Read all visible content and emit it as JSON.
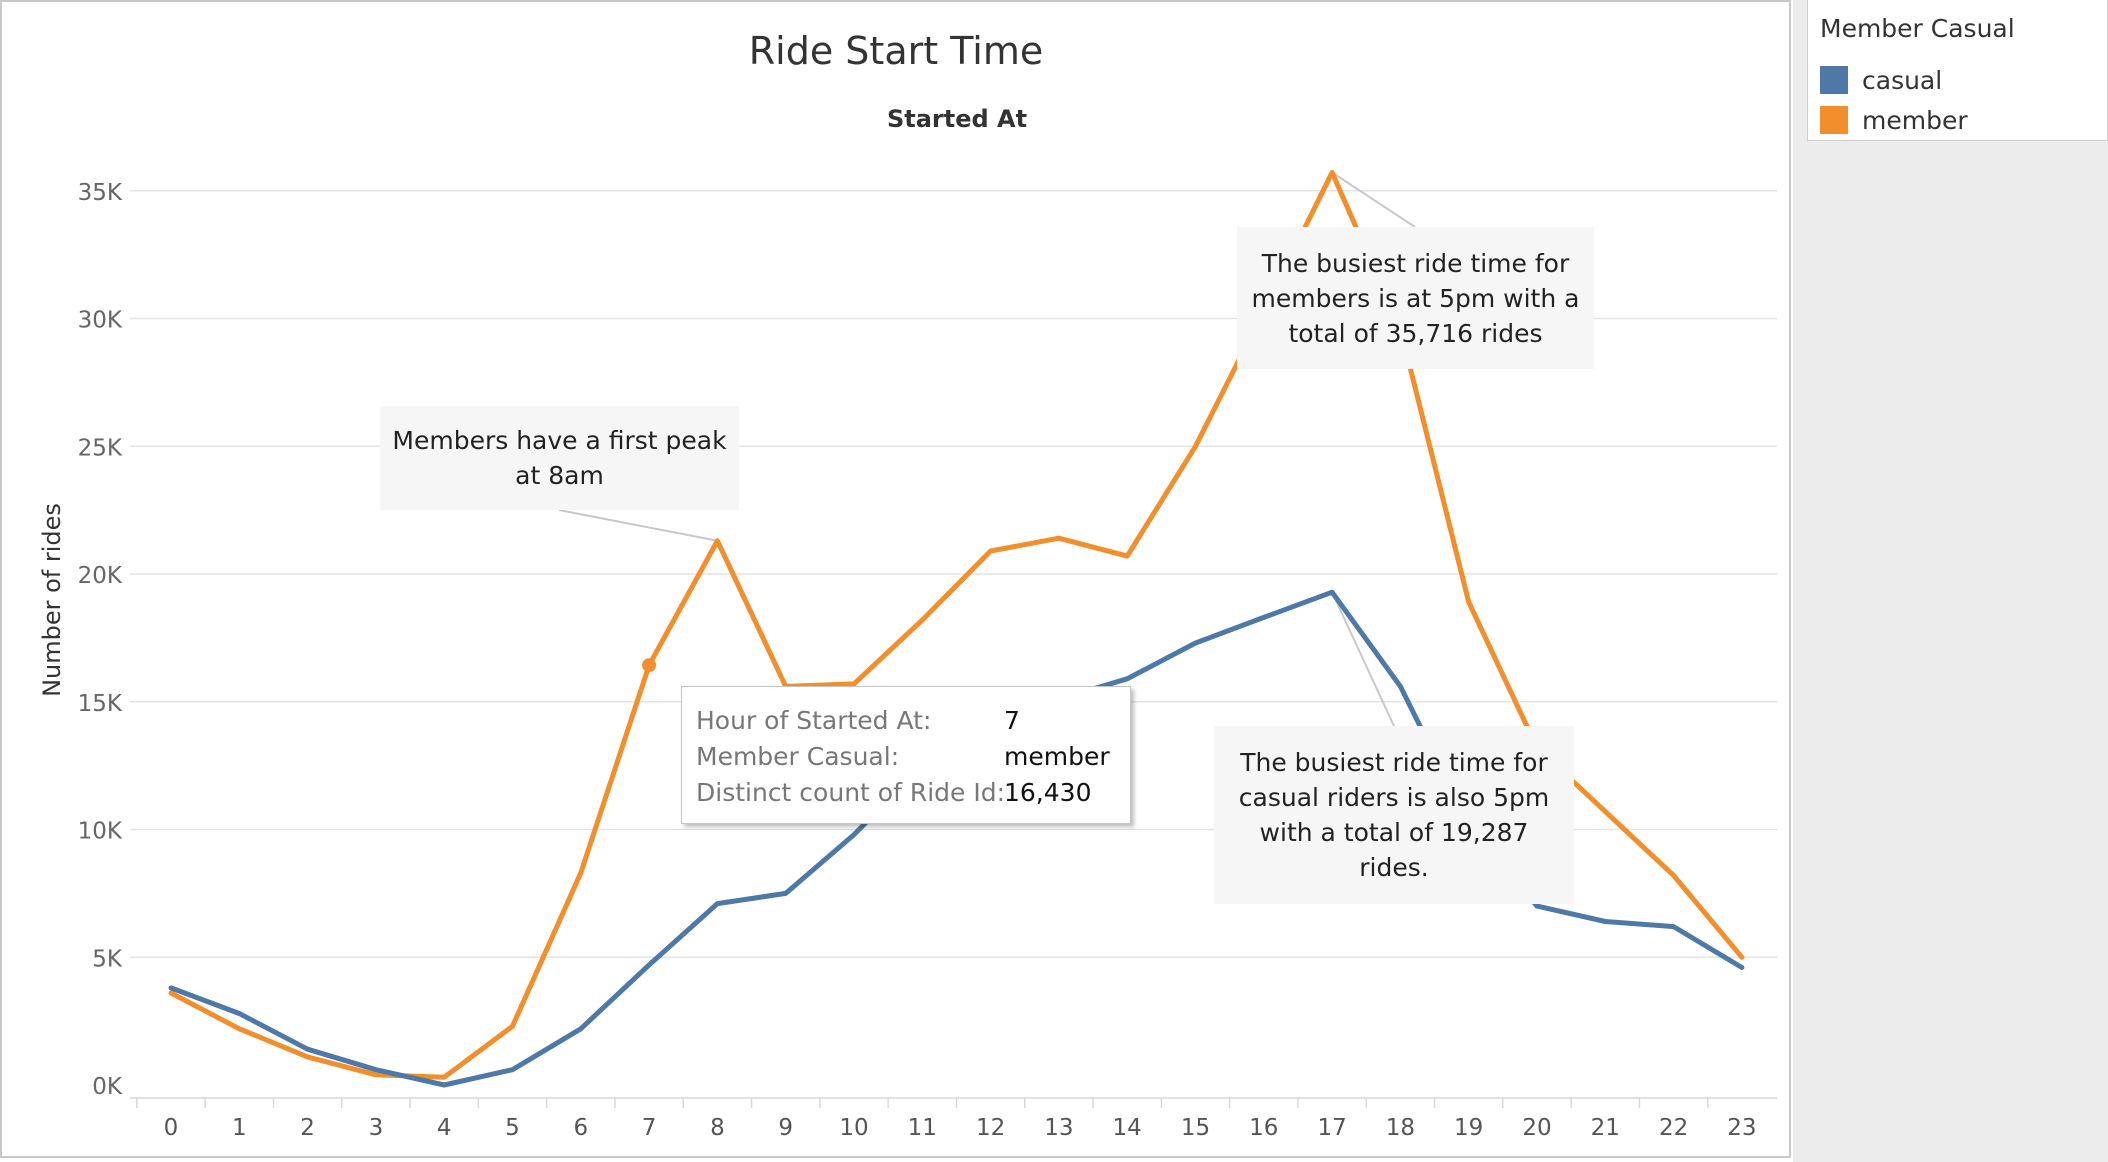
{
  "chart_data": {
    "type": "line",
    "title": "Ride Start Time",
    "subtitle": "Started At",
    "xlabel": "",
    "ylabel": "Number of rides",
    "categories": [
      "0",
      "1",
      "2",
      "3",
      "4",
      "5",
      "6",
      "7",
      "8",
      "9",
      "10",
      "11",
      "12",
      "13",
      "14",
      "15",
      "16",
      "17",
      "18",
      "19",
      "20",
      "21",
      "22",
      "23"
    ],
    "ylim": [
      0,
      37000
    ],
    "yticks": [
      0,
      5000,
      10000,
      15000,
      20000,
      25000,
      30000,
      35000
    ],
    "ytick_labels": [
      "0K",
      "5K",
      "10K",
      "15K",
      "20K",
      "25K",
      "30K",
      "35K"
    ],
    "grid": true,
    "legend_position": "top-right",
    "legend_title": "Member Casual",
    "series": [
      {
        "name": "casual",
        "color": "#4e79a7",
        "values": [
          3800,
          2800,
          1400,
          600,
          0,
          600,
          2200,
          4700,
          7100,
          7500,
          9800,
          12500,
          14100,
          15100,
          15900,
          17300,
          18300,
          19287,
          15600,
          10200,
          7000,
          6400,
          6200,
          4600
        ]
      },
      {
        "name": "member",
        "color": "#f28e2b",
        "values": [
          3600,
          2200,
          1100,
          400,
          300,
          2300,
          8300,
          16430,
          21300,
          15600,
          15700,
          18200,
          20900,
          21400,
          20700,
          25000,
          30300,
          35716,
          29600,
          18900,
          13200,
          10700,
          8200,
          5000
        ]
      }
    ],
    "annotations": [
      {
        "text": "Members have a first peak at 8am",
        "series": "member",
        "category": "8"
      },
      {
        "text": "The busiest ride time for members is at 5pm with a total of 35,716 rides",
        "series": "member",
        "category": "17"
      },
      {
        "text": "The busiest ride time for casual riders is also 5pm with a total of 19,287 rides.",
        "series": "casual",
        "category": "17"
      }
    ],
    "tooltip": {
      "rows": [
        {
          "key": "Hour of Started At:",
          "value": "7"
        },
        {
          "key": "Member Casual:",
          "value": "member"
        },
        {
          "key": "Distinct count of Ride Id:",
          "value": "16,430"
        }
      ]
    }
  },
  "legend": {
    "title": "Member Casual",
    "items": [
      {
        "label": "casual",
        "color": "#4e79a7"
      },
      {
        "label": "member",
        "color": "#f28e2b"
      }
    ]
  }
}
